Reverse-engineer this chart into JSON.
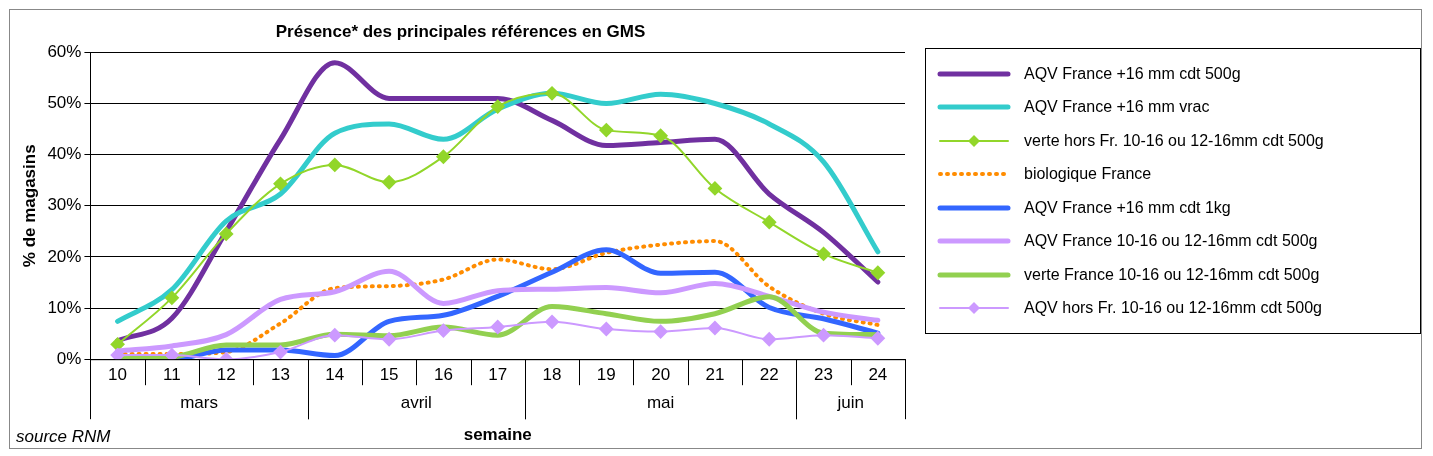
{
  "chart_data": {
    "type": "line",
    "title": "Présence* des principales références en GMS",
    "xlabel": "semaine",
    "ylabel": "% de magasins",
    "categories": [
      "10",
      "11",
      "12",
      "13",
      "14",
      "15",
      "16",
      "17",
      "18",
      "19",
      "20",
      "21",
      "22",
      "23",
      "24"
    ],
    "series": [
      {
        "name": "AQV France +16 mm cdt 500g",
        "color": "#7030a0",
        "marker": "none",
        "line_style": "solid",
        "values": [
          3.6,
          8,
          25,
          43,
          58,
          51,
          51,
          51,
          46.7,
          41.8,
          42.4,
          43,
          32.3,
          24.8,
          15.1
        ]
      },
      {
        "name": "AQV France +16 mm vrac",
        "color": "#33cccc",
        "marker": "none",
        "line_style": "solid",
        "values": [
          7.4,
          13.6,
          27,
          32.3,
          44.2,
          46,
          43,
          48.9,
          52,
          50,
          51.8,
          50,
          46,
          38.6,
          21
        ]
      },
      {
        "name": "verte hors Fr. 10-16 ou 12-16mm cdt 500g",
        "color": "#92d62a",
        "marker": "diamond",
        "line_style": "solid",
        "values": [
          2.9,
          12,
          24.5,
          34.3,
          38,
          34.6,
          39.6,
          49.4,
          52,
          44.8,
          43.7,
          33.4,
          26.8,
          20.6,
          16.9
        ]
      },
      {
        "name": "biologique France",
        "color": "#ff8c00",
        "marker": "none",
        "line_style": "dotted",
        "values": [
          1,
          1,
          1.4,
          7,
          13.9,
          14.3,
          15.6,
          19.5,
          17.6,
          20.8,
          22.4,
          23.1,
          14.2,
          8.9,
          6.7
        ]
      },
      {
        "name": "AQV France +16 mm cdt 1kg",
        "color": "#3366ff",
        "marker": "none",
        "line_style": "solid",
        "values": [
          0,
          0,
          1.8,
          1.8,
          0.7,
          7.4,
          8.6,
          12.3,
          17,
          21.4,
          16.8,
          17,
          10.1,
          7.9,
          5.1
        ]
      },
      {
        "name": "AQV France 10-16 ou 12-16mm cdt 500g",
        "color": "#cc99ff",
        "marker": "none",
        "line_style": "solid",
        "values": [
          1.6,
          2.6,
          4.8,
          11.7,
          13.2,
          17.2,
          10.9,
          13.4,
          13.7,
          14,
          13,
          14.8,
          12.3,
          9.2,
          7.6
        ]
      },
      {
        "name": "verte France 10-16 ou 12-16mm cdt 500g",
        "color": "#92d050",
        "marker": "none",
        "line_style": "solid",
        "values": [
          0.1,
          0.4,
          2.8,
          2.8,
          4.9,
          4.6,
          6.3,
          4.7,
          10.3,
          8.9,
          7.4,
          8.9,
          12.2,
          5.1,
          4.8
        ]
      },
      {
        "name": "AQV hors Fr. 10-16 ou 12-16mm cdt 500g",
        "color": "#cc99ff",
        "marker": "diamond",
        "line_style": "solid",
        "values": [
          0.8,
          0.8,
          0,
          1.4,
          4.7,
          3.9,
          5.6,
          6.3,
          7.3,
          5.9,
          5.4,
          6.1,
          3.9,
          4.7,
          4.1
        ]
      }
    ],
    "ylim": [
      0,
      60
    ],
    "yticks": [
      {
        "value": 0,
        "label": "0%"
      },
      {
        "value": 10,
        "label": "10%"
      },
      {
        "value": 20,
        "label": "20%"
      },
      {
        "value": 30,
        "label": "30%"
      },
      {
        "value": 40,
        "label": "40%"
      },
      {
        "value": 50,
        "label": "50%"
      },
      {
        "value": 60,
        "label": "60%"
      }
    ],
    "grid": "y",
    "legend": "right",
    "annotations": [
      "mars",
      "avril",
      "mai",
      "juin",
      "source RNM"
    ]
  }
}
